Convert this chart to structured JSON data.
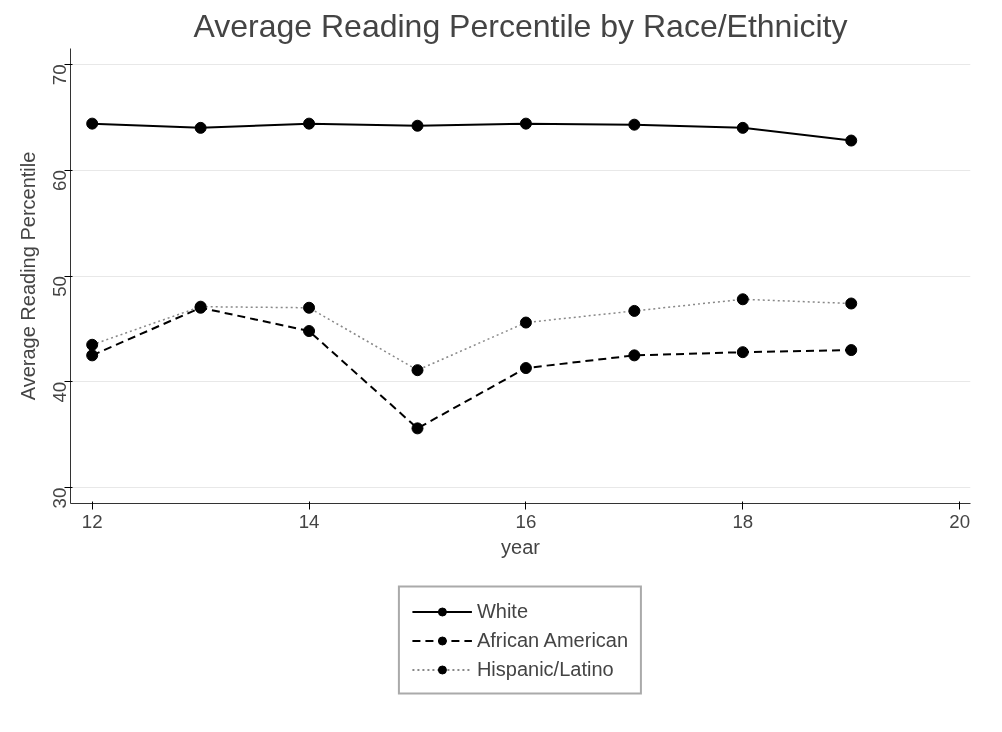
{
  "chart_data": {
    "type": "line",
    "title": "Average Reading Percentile by Race/Ethnicity",
    "xlabel": "year",
    "ylabel": "Average Reading Percentile",
    "x": [
      12,
      13,
      14,
      15,
      16,
      17,
      18,
      19
    ],
    "series": [
      {
        "name": "White",
        "color": "#000000",
        "line_style": "solid",
        "values": [
          64.4,
          64.0,
          64.4,
          64.2,
          64.4,
          64.3,
          64.0,
          62.8
        ]
      },
      {
        "name": "African American",
        "color": "#000000",
        "line_style": "dashed",
        "values": [
          42.5,
          47.0,
          44.8,
          35.6,
          41.3,
          42.5,
          42.8,
          43.0
        ]
      },
      {
        "name": "Hispanic/Latino",
        "color": "#888888",
        "line_style": "dotted",
        "values": [
          43.5,
          47.1,
          47.0,
          41.1,
          45.6,
          46.7,
          47.8,
          47.4
        ]
      }
    ],
    "xlim": [
      11.8,
      20.1
    ],
    "ylim": [
      28.5,
      71.5
    ],
    "xticks": [
      12,
      14,
      16,
      18,
      20
    ],
    "yticks": [
      30,
      40,
      50,
      60,
      70
    ],
    "grid": "y",
    "legend": "bottom",
    "marker": "circle"
  }
}
